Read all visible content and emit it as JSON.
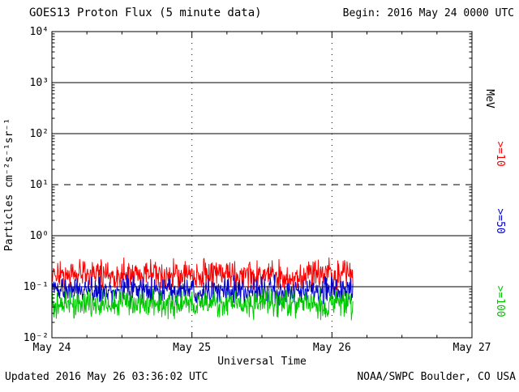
{
  "header": {
    "title": "GOES13 Proton Flux (5 minute data)",
    "begin": "Begin: 2016 May 24 0000 UTC"
  },
  "footer": {
    "updated": "Updated 2016 May 26 03:36:02 UTC",
    "source": "NOAA/SWPC Boulder, CO USA"
  },
  "chart_data": {
    "type": "line",
    "title": "GOES13 Proton Flux (5 minute data)",
    "xlabel": "Universal Time",
    "ylabel": "Particles cm⁻²s⁻¹sr⁻¹",
    "y_scale": "log",
    "ylim": [
      0.01,
      10000
    ],
    "y_tick_exponents": [
      4,
      3,
      2,
      1,
      0,
      -1,
      -2
    ],
    "y_tick_labels": [
      "10⁴",
      "10³",
      "10²",
      "10¹",
      "10⁰",
      "10⁻¹",
      "10⁻²"
    ],
    "x_ticks": [
      "May 24",
      "May 25",
      "May 26",
      "May 27"
    ],
    "x_range_days": 3,
    "x_start": "2016 May 24 0000 UTC",
    "grid_on": true,
    "grid": {
      "h_solid_decades": [
        3,
        2,
        0,
        -1
      ],
      "h_dashed_decades": [
        1
      ],
      "v_dotted_days": [
        1,
        2
      ]
    },
    "right_axis_unit": "MeV",
    "legend_position": "right",
    "points_per_day": 288,
    "series": [
      {
        "label": ">=10",
        "energy": ">=10 MeV",
        "color": "#fb0000",
        "approx_level": 0.17,
        "approx_range": [
          0.1,
          0.33
        ],
        "data_start_day": 0,
        "data_end_day": 2.15
      },
      {
        "label": ">=50",
        "energy": ">=50 MeV",
        "color": "#0000c8",
        "approx_level": 0.085,
        "approx_range": [
          0.05,
          0.15
        ],
        "data_start_day": 0,
        "data_end_day": 2.15
      },
      {
        "label": ">=100",
        "energy": ">=100 MeV",
        "color": "#00c800",
        "approx_level": 0.047,
        "approx_range": [
          0.027,
          0.085
        ],
        "data_start_day": 0,
        "data_end_day": 2.15
      }
    ]
  }
}
